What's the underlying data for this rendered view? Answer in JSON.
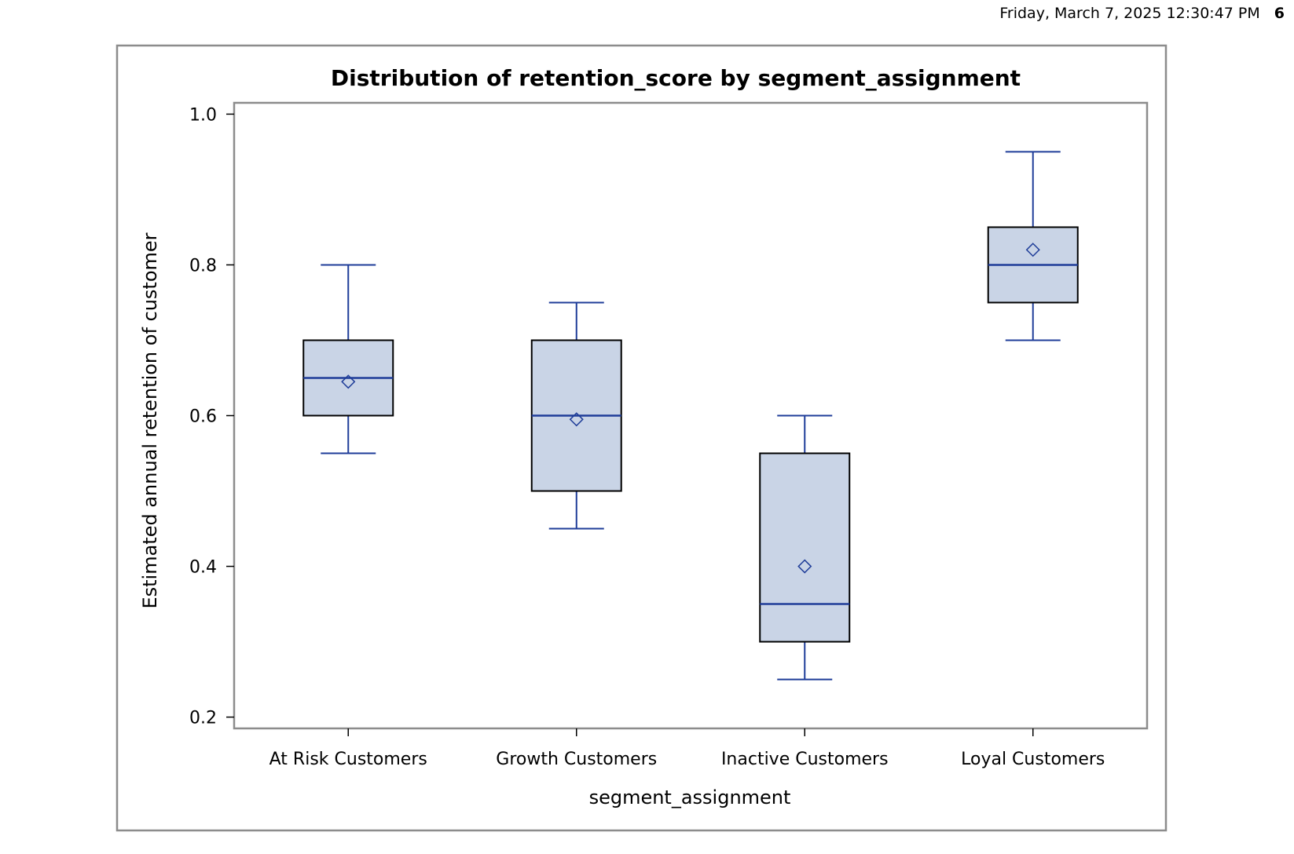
{
  "header": {
    "timestamp": "Friday, March  7, 2025 12:30:47 PM",
    "page_number": "6"
  },
  "chart_data": {
    "type": "box",
    "title": "Distribution of retention_score by segment_assignment",
    "xlabel": "segment_assignment",
    "ylabel": "Estimated annual retention of customer",
    "ylim": [
      0.185,
      1.015
    ],
    "yticks": [
      0.2,
      0.4,
      0.6,
      0.8,
      1.0
    ],
    "ytick_labels": [
      "0.2",
      "0.4",
      "0.6",
      "0.8",
      "1.0"
    ],
    "grid": false,
    "legend": "none",
    "categories": [
      "At Risk Customers",
      "Growth Customers",
      "Inactive Customers",
      "Loyal Customers"
    ],
    "boxes": [
      {
        "category": "At Risk Customers",
        "whisker_low": 0.55,
        "q1": 0.6,
        "median": 0.65,
        "q3": 0.7,
        "whisker_high": 0.8,
        "mean": 0.645
      },
      {
        "category": "Growth Customers",
        "whisker_low": 0.45,
        "q1": 0.5,
        "median": 0.6,
        "q3": 0.7,
        "whisker_high": 0.75,
        "mean": 0.595
      },
      {
        "category": "Inactive Customers",
        "whisker_low": 0.25,
        "q1": 0.3,
        "median": 0.35,
        "q3": 0.55,
        "whisker_high": 0.6,
        "mean": 0.4
      },
      {
        "category": "Loyal Customers",
        "whisker_low": 0.7,
        "q1": 0.75,
        "median": 0.8,
        "q3": 0.85,
        "whisker_high": 0.95,
        "mean": 0.82
      }
    ],
    "colors": {
      "box_fill": "#c9d4e6",
      "box_outline": "#000000",
      "median_line": "#1f3d99",
      "whisker": "#1f3d99",
      "mean_marker": "#1f3d99",
      "frame": "#8c8c8c"
    }
  }
}
